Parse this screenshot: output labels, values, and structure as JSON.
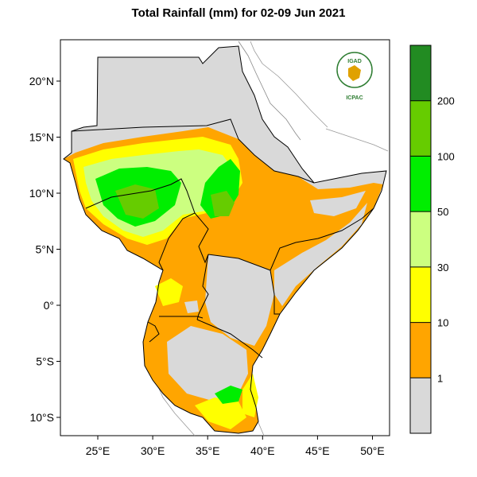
{
  "title": "Total Rainfall (mm) for 02-09 Jun 2021",
  "logo": {
    "top_text": "IGAD",
    "bottom_text": "ICPAC"
  },
  "axes": {
    "lon_labels": [
      "25°E",
      "30°E",
      "35°E",
      "40°E",
      "45°E",
      "50°E"
    ],
    "lon_values": [
      25,
      30,
      35,
      40,
      45,
      50
    ],
    "lat_labels": [
      "20°N",
      "15°N",
      "10°N",
      "5°N",
      "0°",
      "5°S",
      "10°S"
    ],
    "lat_values": [
      20,
      15,
      10,
      5,
      0,
      -5,
      -10
    ]
  },
  "legend": {
    "bins": [
      {
        "color": "#d9d9d9"
      },
      {
        "color": "#ffa500"
      },
      {
        "color": "#ffff00"
      },
      {
        "color": "#ccff80"
      },
      {
        "color": "#00ee00"
      },
      {
        "color": "#66cc00"
      },
      {
        "color": "#228b22"
      }
    ],
    "labels": [
      "1",
      "10",
      "30",
      "50",
      "100",
      "200"
    ]
  },
  "colors": {
    "no_rain": "#d9d9d9",
    "rain_1_10": "#ffa500",
    "rain_10_30": "#ffff00",
    "rain_30_50": "#ccff80",
    "rain_50_100": "#00ee00",
    "rain_100_200": "#66cc00",
    "rain_200_plus": "#228b22"
  }
}
